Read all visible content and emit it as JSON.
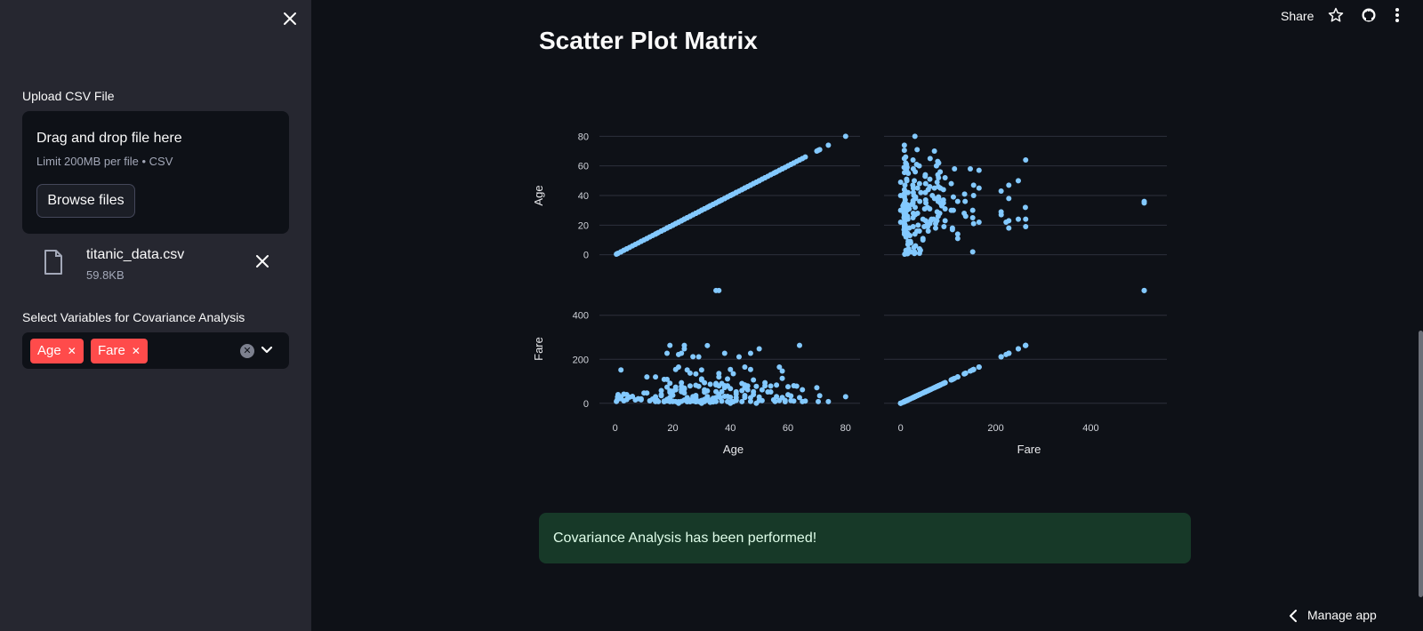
{
  "sidebar": {
    "upload_label": "Upload CSV File",
    "dropzone_title": "Drag and drop file here",
    "dropzone_limit": "Limit 200MB per file • CSV",
    "browse_button": "Browse files",
    "file_name": "titanic_data.csv",
    "file_size": "59.8KB",
    "select_label": "Select Variables for Covariance Analysis",
    "selected_tags": [
      "Age",
      "Fare"
    ],
    "tag_color": "#ff4b4b"
  },
  "header": {
    "share_label": "Share"
  },
  "main": {
    "title": "Scatter Plot Matrix",
    "success_message": "Covariance Analysis has been performed!",
    "manage_app": "Manage app"
  },
  "colors": {
    "marker": "#83c9ff",
    "background": "#0e1117",
    "sidebar": "#262730",
    "success_bg": "#173928"
  },
  "chart_data": {
    "type": "scatter",
    "title": "",
    "variables": [
      "Age",
      "Fare"
    ],
    "axis_ticks": {
      "Age": [
        0,
        20,
        40,
        60,
        80
      ],
      "Fare": [
        0,
        200,
        400
      ]
    },
    "ylim": {
      "Age": [
        0,
        80
      ],
      "Fare": [
        0,
        512
      ]
    },
    "panels": [
      {
        "row": "Age",
        "col": "Age"
      },
      {
        "row": "Age",
        "col": "Fare"
      },
      {
        "row": "Fare",
        "col": "Age"
      },
      {
        "row": "Fare",
        "col": "Fare"
      }
    ],
    "points": [
      [
        22,
        7.25
      ],
      [
        38,
        71.28
      ],
      [
        26,
        7.93
      ],
      [
        35,
        53.1
      ],
      [
        35,
        8.05
      ],
      [
        54,
        51.86
      ],
      [
        2,
        21.08
      ],
      [
        27,
        11.13
      ],
      [
        14,
        30.07
      ],
      [
        4,
        16.7
      ],
      [
        58,
        26.55
      ],
      [
        20,
        8.05
      ],
      [
        39,
        31.28
      ],
      [
        14,
        7.85
      ],
      [
        55,
        16
      ],
      [
        2,
        29.13
      ],
      [
        31,
        18
      ],
      [
        35,
        26
      ],
      [
        34,
        13
      ],
      [
        15,
        8.03
      ],
      [
        28,
        35.5
      ],
      [
        8,
        21.08
      ],
      [
        38,
        31.39
      ],
      [
        19,
        263
      ],
      [
        40,
        27.72
      ],
      [
        66,
        10.5
      ],
      [
        28,
        82.17
      ],
      [
        42,
        52
      ],
      [
        21,
        8.05
      ],
      [
        18,
        18
      ],
      [
        3,
        11.13
      ],
      [
        7,
        15.25
      ],
      [
        49,
        76.73
      ],
      [
        29,
        7.9
      ],
      [
        65,
        61.98
      ],
      [
        5,
        27.9
      ],
      [
        11,
        46.9
      ],
      [
        22,
        221.78
      ],
      [
        45,
        83.48
      ],
      [
        4,
        39.69
      ],
      [
        29,
        76.73
      ],
      [
        19,
        26.28
      ],
      [
        17,
        10.5
      ],
      [
        26,
        14.45
      ],
      [
        32,
        56.5
      ],
      [
        16,
        34.38
      ],
      [
        21,
        61.38
      ],
      [
        32,
        262.38
      ],
      [
        25,
        7.05
      ],
      [
        0.83,
        29
      ],
      [
        30,
        12.48
      ],
      [
        33,
        14.5
      ],
      [
        23,
        52.55
      ],
      [
        24,
        15.05
      ],
      [
        46,
        61.18
      ],
      [
        59,
        7.25
      ],
      [
        71,
        34.65
      ],
      [
        37,
        9.59
      ],
      [
        47,
        227.52
      ],
      [
        14.5,
        14.45
      ],
      [
        70.5,
        7.75
      ],
      [
        32.5,
        13
      ],
      [
        12,
        11.24
      ],
      [
        9,
        15.9
      ],
      [
        36.5,
        26
      ],
      [
        51,
        12.53
      ],
      [
        55.5,
        8.05
      ],
      [
        40.5,
        7.75
      ],
      [
        44,
        90
      ],
      [
        1,
        39.69
      ],
      [
        61,
        33.5
      ],
      [
        56,
        30.7
      ],
      [
        50,
        247.52
      ],
      [
        45,
        26.55
      ],
      [
        36,
        512.33
      ],
      [
        35,
        512.33
      ],
      [
        58,
        146.52
      ],
      [
        30,
        110.88
      ],
      [
        18,
        108.9
      ],
      [
        24,
        247.52
      ],
      [
        29,
        211.34
      ],
      [
        62,
        80
      ],
      [
        60,
        75.25
      ],
      [
        16,
        57.98
      ],
      [
        52,
        93.5
      ],
      [
        27,
        211.5
      ],
      [
        43,
        211.34
      ],
      [
        24,
        263
      ],
      [
        19,
        91.08
      ],
      [
        48,
        106.43
      ],
      [
        33,
        86.5
      ],
      [
        0.42,
        8.52
      ],
      [
        0.67,
        14.5
      ],
      [
        80,
        30
      ],
      [
        74,
        7.78
      ],
      [
        64,
        263
      ],
      [
        63,
        77.96
      ],
      [
        54,
        78.27
      ],
      [
        13,
        19.5
      ],
      [
        25,
        151.55
      ],
      [
        30,
        151.55
      ],
      [
        2,
        151.55
      ],
      [
        36,
        120
      ],
      [
        11,
        120
      ],
      [
        39,
        110.88
      ],
      [
        41,
        134.5
      ],
      [
        36,
        135.63
      ],
      [
        21,
        153.46
      ],
      [
        47,
        153.46
      ],
      [
        38,
        227.52
      ],
      [
        18,
        227.52
      ],
      [
        23,
        227.52
      ],
      [
        45,
        164.87
      ],
      [
        37,
        90
      ],
      [
        31,
        93.5
      ],
      [
        40,
        153.46
      ],
      [
        22,
        164.87
      ],
      [
        28,
        7.23
      ],
      [
        20,
        9.5
      ],
      [
        17,
        7.05
      ],
      [
        31,
        7.78
      ],
      [
        23,
        8.66
      ],
      [
        42,
        13
      ],
      [
        26,
        7.75
      ],
      [
        44,
        7.85
      ],
      [
        57,
        12.35
      ],
      [
        30,
        13
      ],
      [
        34,
        7.9
      ],
      [
        25,
        26
      ],
      [
        21,
        73.5
      ],
      [
        35,
        83.47
      ],
      [
        47,
        25.59
      ],
      [
        39,
        7.93
      ],
      [
        48,
        39.6
      ],
      [
        56,
        83.16
      ],
      [
        42,
        26.55
      ],
      [
        19,
        7.85
      ],
      [
        27,
        10.5
      ],
      [
        50,
        13
      ],
      [
        28,
        26.55
      ],
      [
        6,
        31.28
      ],
      [
        9,
        20.52
      ],
      [
        10,
        46.9
      ],
      [
        18,
        73.5
      ],
      [
        33,
        5
      ],
      [
        41,
        7.13
      ],
      [
        26,
        78.85
      ],
      [
        23,
        63.36
      ],
      [
        36,
        78.85
      ],
      [
        30,
        0
      ],
      [
        49,
        0
      ],
      [
        22,
        0
      ],
      [
        40,
        0
      ],
      [
        60,
        39
      ],
      [
        52,
        79.65
      ],
      [
        48,
        52.55
      ],
      [
        38,
        80
      ],
      [
        17,
        108.9
      ],
      [
        24,
        69.3
      ],
      [
        20,
        36.75
      ],
      [
        31,
        50.5
      ],
      [
        45,
        35.5
      ],
      [
        46,
        79.2
      ],
      [
        53,
        51.48
      ],
      [
        27,
        30.5
      ],
      [
        32,
        30.5
      ],
      [
        42,
        42.4
      ],
      [
        36,
        40.13
      ],
      [
        24,
        46.9
      ],
      [
        62,
        10.5
      ],
      [
        3,
        41.58
      ],
      [
        29,
        9.48
      ],
      [
        34,
        23
      ],
      [
        23,
        93.5
      ],
      [
        19,
        57
      ],
      [
        28,
        133.65
      ],
      [
        16,
        39.4
      ],
      [
        44,
        57.98
      ],
      [
        37,
        52.55
      ],
      [
        51,
        61.38
      ],
      [
        33,
        5
      ],
      [
        18,
        11.5
      ],
      [
        42,
        15.5
      ],
      [
        25,
        13
      ],
      [
        30,
        106.43
      ],
      [
        45,
        71
      ],
      [
        28,
        7.22
      ],
      [
        65,
        7.75
      ],
      [
        61,
        12.35
      ],
      [
        70,
        71
      ],
      [
        59,
        13.5
      ],
      [
        24,
        65
      ],
      [
        39,
        79.65
      ],
      [
        31,
        61.17
      ],
      [
        57,
        164.87
      ],
      [
        50,
        28.71
      ],
      [
        47,
        9
      ],
      [
        20,
        8.66
      ],
      [
        23,
        76.29
      ],
      [
        34,
        6.5
      ],
      [
        19,
        49.5
      ],
      [
        14,
        120
      ],
      [
        64,
        26
      ],
      [
        58,
        113.28
      ],
      [
        35,
        90
      ],
      [
        26,
        136.78
      ],
      [
        20,
        55.44
      ],
      [
        40,
        66.6
      ]
    ]
  }
}
